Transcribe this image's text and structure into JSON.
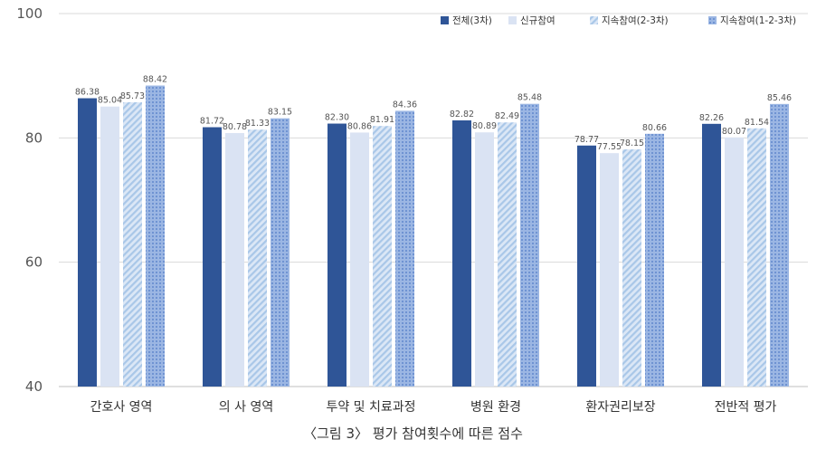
{
  "chart_data": {
    "type": "bar",
    "categories": [
      "간호사 영역",
      "의 사 영역",
      "투약 및 치료과정",
      "병원 환경",
      "환자권리보장",
      "전반적 평가"
    ],
    "series": [
      {
        "name": "전체(3차)",
        "values": [
          86.38,
          81.72,
          82.3,
          82.82,
          78.77,
          82.26
        ],
        "color": "#2f5597",
        "pattern": "solid"
      },
      {
        "name": "신규참여",
        "values": [
          85.04,
          80.78,
          80.86,
          80.89,
          77.55,
          80.07
        ],
        "color": "#dae3f3",
        "pattern": "solid"
      },
      {
        "name": "지속참여(2-3차)",
        "values": [
          85.73,
          81.33,
          81.91,
          82.49,
          78.15,
          81.54
        ],
        "color": "#bdd7ee",
        "pattern": "diagonal"
      },
      {
        "name": "지속참여(1-2-3차)",
        "values": [
          88.42,
          83.15,
          84.36,
          85.48,
          80.66,
          85.46
        ],
        "color": "#8faadc",
        "pattern": "dots"
      }
    ],
    "data_labels": [
      [
        "86.38",
        "85.04",
        "85.73",
        "88.42"
      ],
      [
        "81.72",
        "80.78",
        "81.33",
        "83.15"
      ],
      [
        "82.30",
        "80.86",
        "81.91",
        "84.36"
      ],
      [
        "82.82",
        "80.89",
        "82.49",
        "85.48"
      ],
      [
        "78.77",
        "77.55",
        "78.15",
        "80.66"
      ],
      [
        "82.26",
        "80.07",
        "81.54",
        "85.46"
      ]
    ],
    "yticks": [
      "40",
      "60",
      "80",
      "100"
    ],
    "ylim": [
      40,
      100
    ],
    "legend_position": "top-right",
    "grid": true
  },
  "caption": "〈그림 3〉 평가 참여횟수에 따른 점수"
}
